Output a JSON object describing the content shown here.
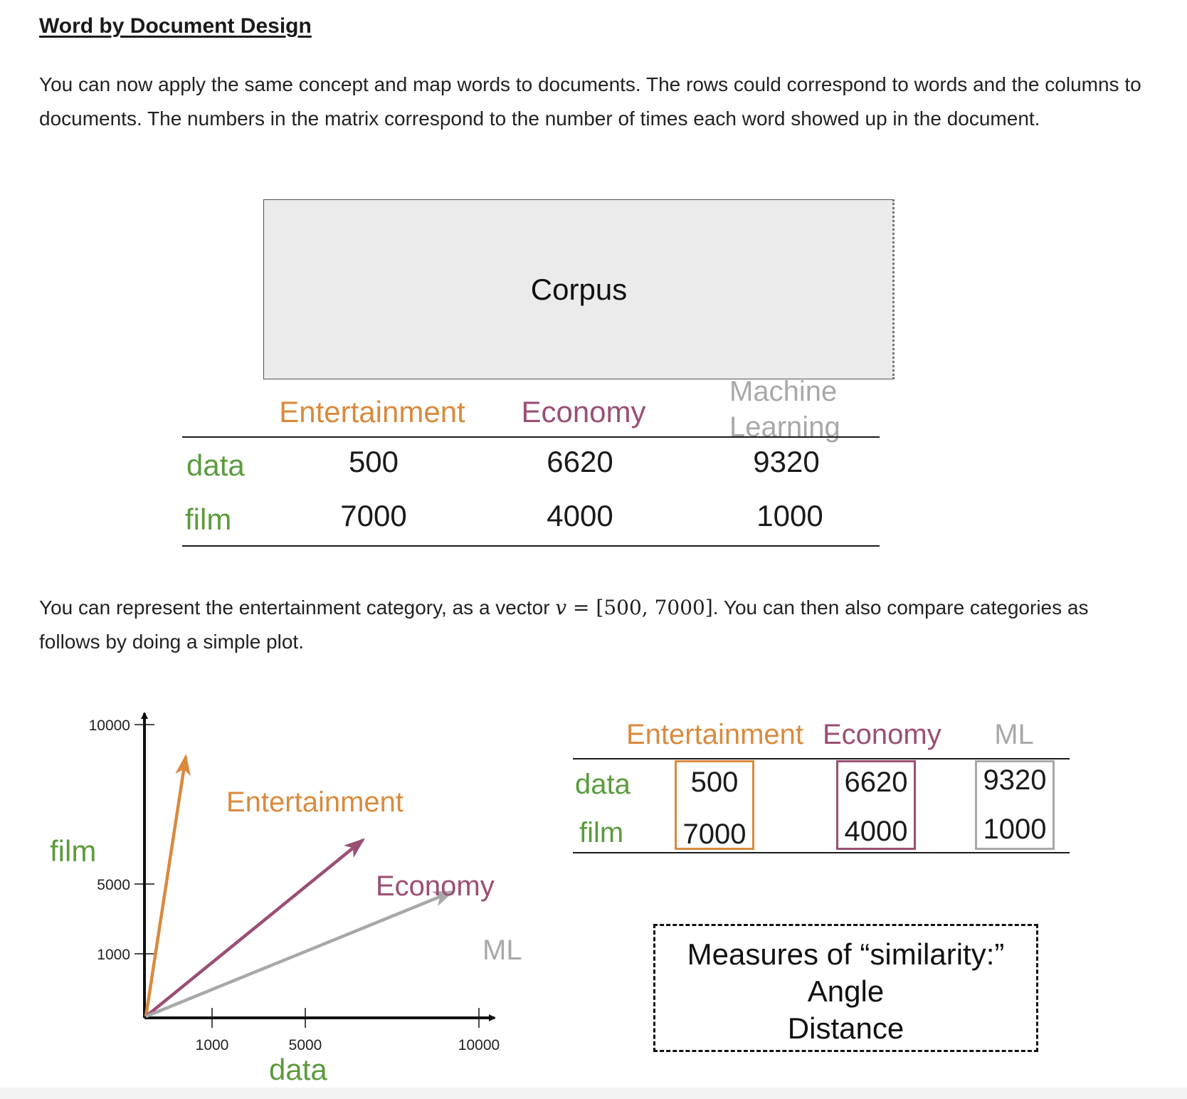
{
  "heading": "Word by Document Design",
  "intro_paragraph": "You can now apply the same concept and map words to documents. The rows could correspond to words and the columns to documents. The numbers in the matrix correspond to the number of times each word showed up in the document.",
  "top_table": {
    "corpus_label": "Corpus",
    "columns": [
      "Entertainment",
      "Economy",
      "Machine Learning"
    ],
    "rows": [
      {
        "word": "data",
        "values": [
          "500",
          "6620",
          "9320"
        ]
      },
      {
        "word": "film",
        "values": [
          "7000",
          "4000",
          "1000"
        ]
      }
    ]
  },
  "vector_paragraph": {
    "before": "You can represent the entertainment category, as a vector ",
    "math_var": "v",
    "math_eq": " = ",
    "math_vec": "[500, 7000]",
    "after": ". You can then also compare categories as follows by doing a simple plot."
  },
  "plot": {
    "y_label": "film",
    "x_label": "data",
    "y_ticks": [
      "10000",
      "5000",
      "1000"
    ],
    "x_ticks": [
      "1000",
      "5000",
      "10000"
    ],
    "vector_labels": [
      "Entertainment",
      "Economy",
      "ML"
    ]
  },
  "chart_data": {
    "type": "line",
    "title": "",
    "xlabel": "data",
    "ylabel": "film",
    "x_ticks": [
      1000,
      5000,
      10000
    ],
    "y_ticks": [
      1000,
      5000,
      10000
    ],
    "series": [
      {
        "name": "Entertainment",
        "x": [
          0,
          500
        ],
        "y": [
          0,
          7000
        ]
      },
      {
        "name": "Economy",
        "x": [
          0,
          6620
        ],
        "y": [
          0,
          4000
        ]
      },
      {
        "name": "ML",
        "x": [
          0,
          9320
        ],
        "y": [
          0,
          1000
        ]
      }
    ],
    "colors": {
      "Entertainment": "#d98a3d",
      "Economy": "#9b4e74",
      "ML": "#a8a8a8",
      "axis_labels": "#5b9b3c"
    }
  },
  "right_table": {
    "columns": [
      "Entertainment",
      "Economy",
      "ML"
    ],
    "rows": [
      {
        "word": "data",
        "values": [
          "500",
          "6620",
          "9320"
        ]
      },
      {
        "word": "film",
        "values": [
          "7000",
          "4000",
          "1000"
        ]
      }
    ]
  },
  "similarity_box": {
    "title": "Measures of “similarity:”",
    "items": [
      "Angle",
      "Distance"
    ]
  }
}
